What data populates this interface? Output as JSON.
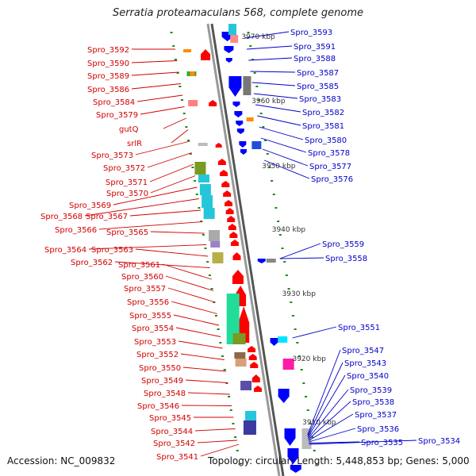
{
  "title": "Serratia proteamaculans 568, complete genome",
  "accession": "Accession: NC_009832",
  "summary": "Topology: circular; Length: 5,448,853 bp; Genes: 5,000",
  "colors": {
    "left_label": "#d10000",
    "right_label": "#0000c8",
    "forward_gene": "#ff0000",
    "reverse_gene": "#0000ff",
    "backbone": "#999999",
    "tick": "#1a8a1a"
  },
  "scale_labels": [
    "3970 kbp",
    "3960 kbp",
    "3950 kbp",
    "3940 kbp",
    "3930 kbp",
    "3920 kbp",
    "3910 kbp"
  ],
  "left_genes": [
    "Spro_3592",
    "Spro_3590",
    "Spro_3589",
    "Spro_3586",
    "Spro_3584",
    "Spro_3579",
    "gutQ",
    "srlR",
    "Spro_3573",
    "Spro_3572",
    "Spro_3571",
    "Spro_3570",
    "Spro_3569",
    "Spro_3568",
    "Spro_3567",
    "Spro_3566",
    "Spro_3565",
    "Spro_3564",
    "Spro_3563",
    "Spro_3562",
    "Spro_3561",
    "Spro_3560",
    "Spro_3557",
    "Spro_3556",
    "Spro_3555",
    "Spro_3554",
    "Spro_3553",
    "Spro_3552",
    "Spro_3550",
    "Spro_3549",
    "Spro_3548",
    "Spro_3546",
    "Spro_3545",
    "Spro_3544",
    "Spro_3542",
    "Spro_3541"
  ],
  "right_genes": [
    "Spro_3593",
    "Spro_3591",
    "Spro_3588",
    "Spro_3587",
    "Spro_3585",
    "Spro_3583",
    "Spro_3582",
    "Spro_3581",
    "Spro_3580",
    "Spro_3578",
    "Spro_3577",
    "Spro_3576",
    "Spro_3559",
    "Spro_3558",
    "Spro_3551",
    "Spro_3547",
    "Spro_3543",
    "Spro_3540",
    "Spro_3539",
    "Spro_3538",
    "Spro_3537",
    "Spro_3536",
    "Spro_3535",
    "Spro_3534"
  ]
}
